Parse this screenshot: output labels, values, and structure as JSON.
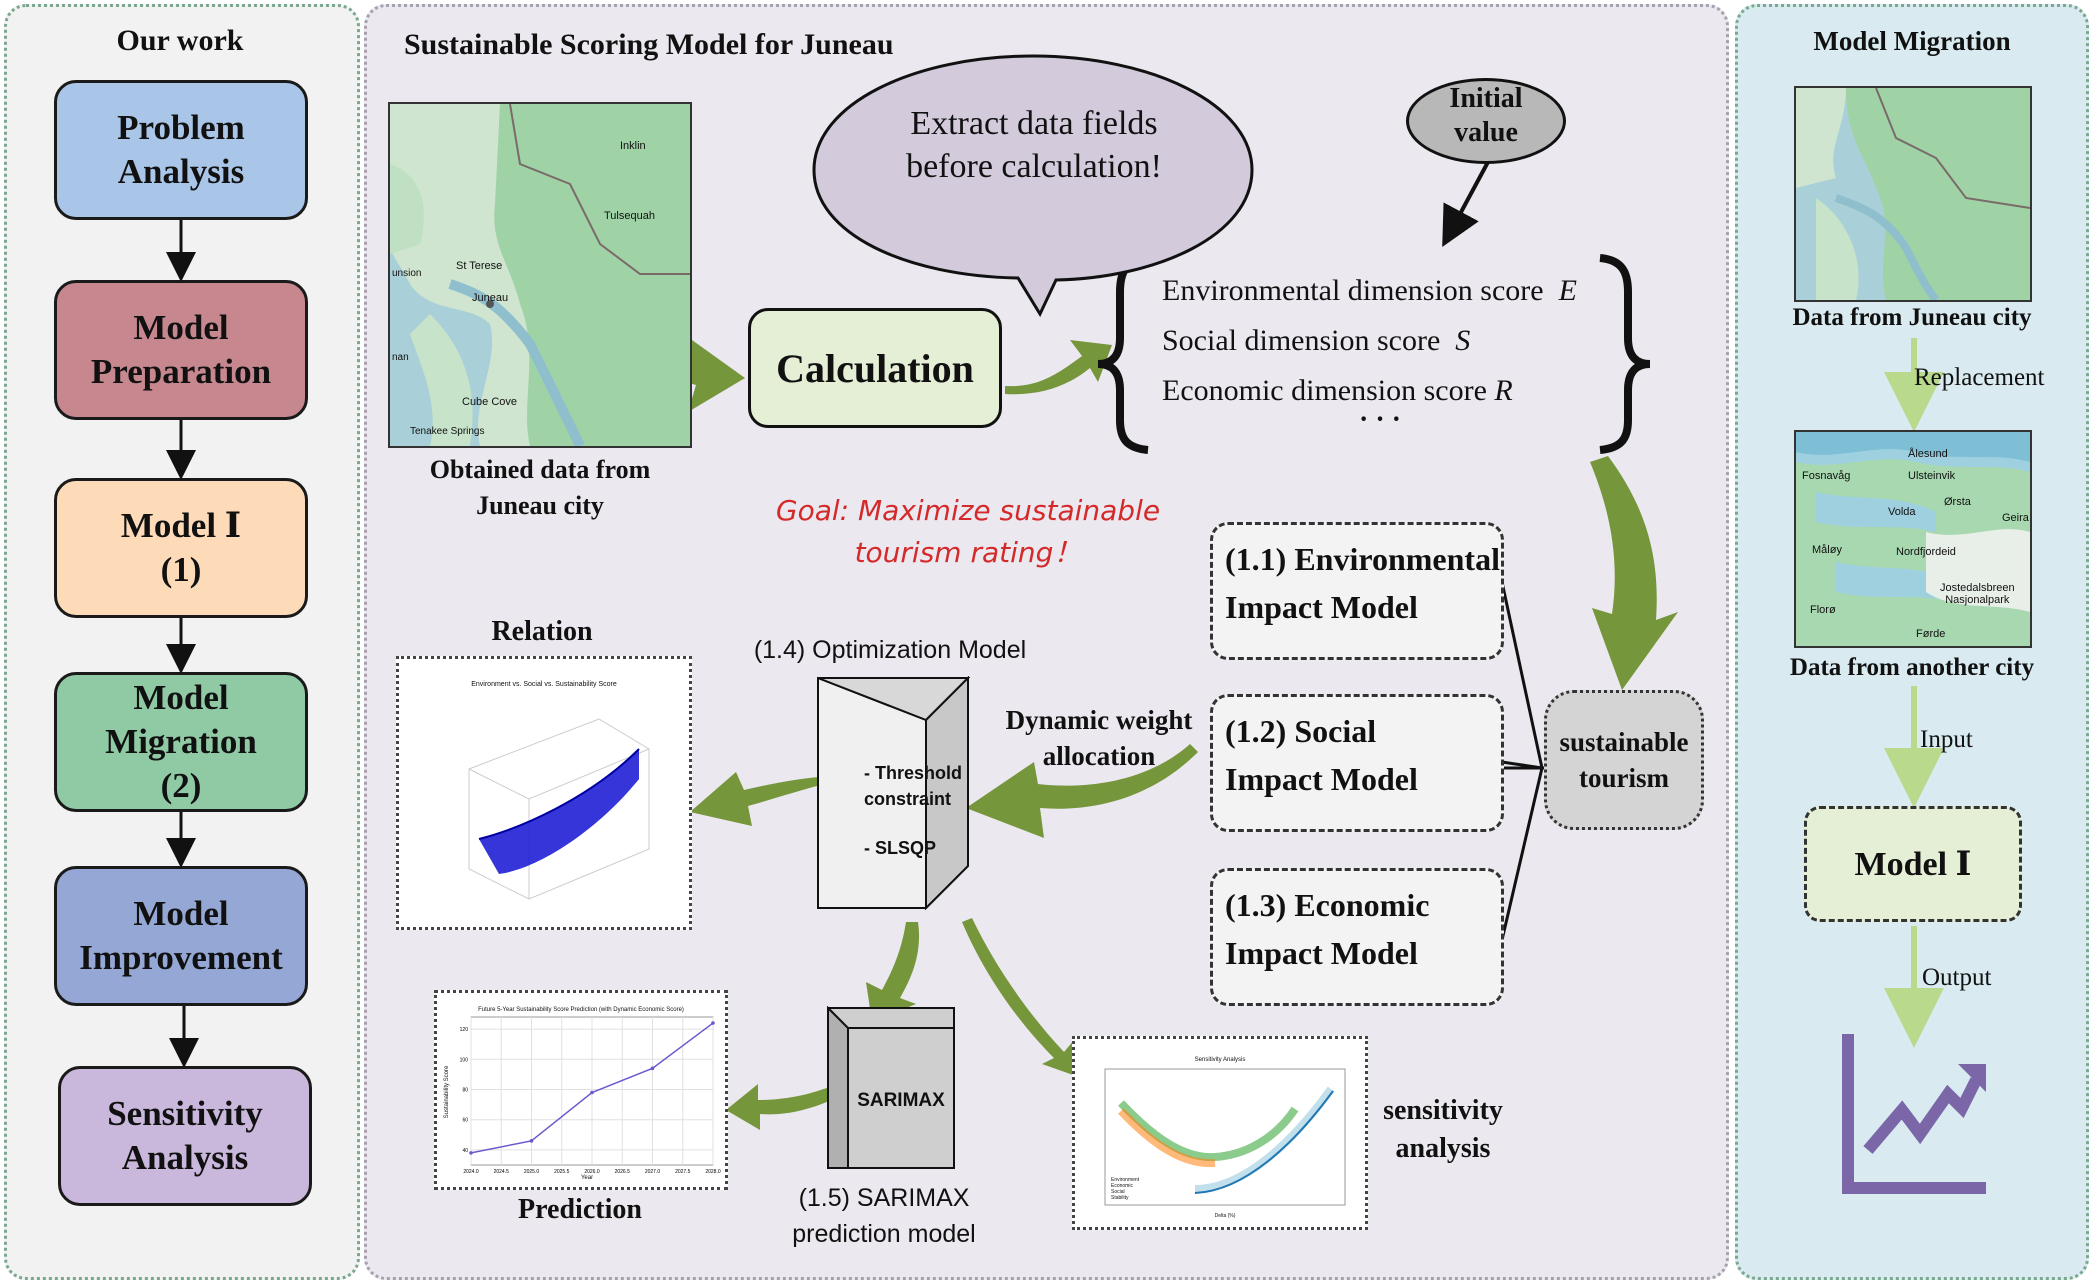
{
  "left_panel": {
    "title": "Our work",
    "stages": [
      {
        "label": "Problem\nAnalysis",
        "color": "#a9c6e8"
      },
      {
        "label": "Model\nPreparation",
        "color": "#c7878f"
      },
      {
        "label": "Model Ⅰ\n(1)",
        "color": "#fddbb8"
      },
      {
        "label": "Model\nMigration\n(2)",
        "color": "#8fcaa5"
      },
      {
        "label": "Model\nImprovement",
        "color": "#95a7d4"
      },
      {
        "label": "Sensitivity\nAnalysis",
        "color": "#c9b8dc"
      }
    ]
  },
  "middle_panel": {
    "title": "Sustainable Scoring Model  for Juneau",
    "map_caption": "Obtained data from\nJuneau city",
    "map_places": [
      "Inklin",
      "Tulsequah",
      "St Terese",
      "Juneau",
      "Cube Cove",
      "Tenakee Springs",
      "unsion",
      "nan"
    ],
    "speech_bubble": "Extract data fields\nbefore calculation!",
    "initial_value": "Initial\nvalue",
    "calculation": "Calculation",
    "scores": [
      {
        "text": "Environmental dimension score",
        "symbol": "E"
      },
      {
        "text": "Social dimension score",
        "symbol": "S"
      },
      {
        "text": "Economic dimension score",
        "symbol": "R"
      }
    ],
    "scores_ellipsis": "· · ·",
    "goal": "Goal: Maximize sustainable\ntourism rating！",
    "impact_models": [
      "(1.1) Environmental\nImpact Model",
      "(1.2) Social\nImpact Model",
      "(1.3) Economic\nImpact Model"
    ],
    "sustainable": "sustainable\ntourism",
    "dynamic_weight": "Dynamic weight\nallocation",
    "optimization_title": "(1.4) Optimization Model",
    "optimization_items": [
      "- Threshold\nconstraint",
      "- SLSQP"
    ],
    "relation_label": "Relation",
    "relation_chart_title": "Environment vs. Social vs. Sustainability Score",
    "sarimax": "SARIMAX",
    "sarimax_caption": "(1.5) SARIMAX\nprediction model",
    "prediction_label": "Prediction",
    "sensitivity_label": "sensitivity\nanalysis"
  },
  "right_panel": {
    "title": "Model Migration",
    "juneau_caption": "Data from Juneau city",
    "replacement": "Replacement",
    "other_places": [
      "Ålesund",
      "Fosnavåg",
      "Ulsteinvik",
      "Ørsta",
      "Volda",
      "Geira",
      "Måløy",
      "Nordfjordeid",
      "Jostedalsbreen\nNasjonalpark",
      "Florø",
      "Førde"
    ],
    "other_caption": "Data from another city",
    "input": "Input",
    "model": "Model  Ⅰ",
    "output": "Output"
  },
  "prediction_chart": {
    "title": "Future 5-Year Sustainability Score Prediction (with Dynamic Economic Score)",
    "type": "line",
    "x": [
      2024.0,
      2024.5,
      2025.0,
      2025.5,
      2026.0,
      2026.5,
      2027.0,
      2027.5,
      2028.0
    ],
    "x_ticks": [
      "2024.0",
      "2024.5",
      "2025.0",
      "2025.5",
      "2026.0",
      "2026.5",
      "2027.0",
      "2027.5",
      "2028.0"
    ],
    "points": [
      [
        2024.0,
        38
      ],
      [
        2025.0,
        46
      ],
      [
        2026.0,
        78
      ],
      [
        2027.0,
        94
      ],
      [
        2028.0,
        124
      ]
    ],
    "xlabel": "Year",
    "ylabel": "Sustainability Score",
    "y_ticks": [
      40,
      60,
      80,
      100,
      120
    ],
    "ylim": [
      30,
      128
    ]
  },
  "sensitivity_chart": {
    "title": "Sensitivity Analysis",
    "type": "line",
    "xlabel": "Delta (%)",
    "ylabel": "Sustainability Score",
    "legend": [
      "Environment",
      "Economic",
      "Social",
      "Stability"
    ],
    "colors": [
      "#2ca02c",
      "#ff7f0e",
      "#9ac9e0",
      "#1f77b4"
    ]
  },
  "colors": {
    "arrow_green": "#76963c",
    "light_arrow": "#b9d98c",
    "output_chart": "#7b67a8"
  }
}
